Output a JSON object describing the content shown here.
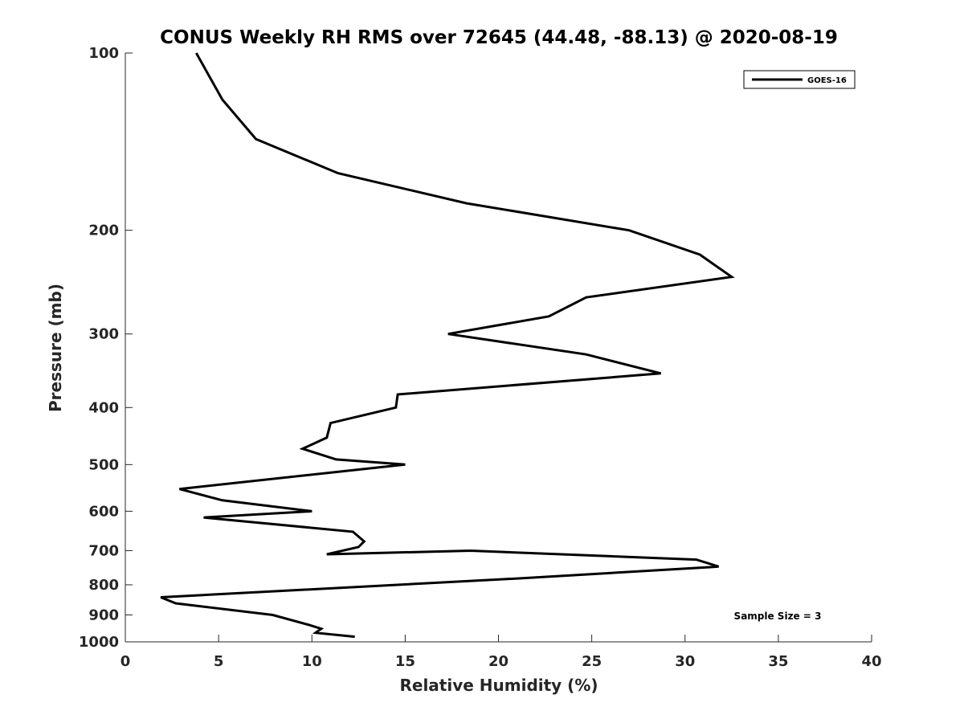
{
  "chart_data": {
    "type": "line",
    "title": "CONUS Weekly RH RMS over 72645 (44.48, -88.13) @ 2020-08-19",
    "xlabel": "Relative Humidity (%)",
    "ylabel": "Pressure (mb)",
    "xlim": [
      0,
      40
    ],
    "ylim": [
      100,
      1000
    ],
    "yscale": "log",
    "yreversed": true,
    "xticks": [
      0,
      5,
      10,
      15,
      20,
      25,
      30,
      35,
      40
    ],
    "yticks": [
      100,
      200,
      300,
      400,
      500,
      600,
      700,
      800,
      900,
      1000
    ],
    "grid": false,
    "legend_position": "top-right",
    "series": [
      {
        "name": "GOES-16",
        "color": "#000000",
        "x": [
          3.8,
          5.2,
          7.0,
          11.4,
          18.3,
          27.0,
          30.8,
          32.5,
          24.7,
          22.7,
          17.3,
          24.7,
          28.7,
          14.6,
          14.5,
          11.0,
          10.8,
          9.5,
          11.3,
          15.0,
          2.9,
          5.2,
          10.0,
          4.2,
          12.2,
          12.8,
          12.5,
          10.8,
          18.5,
          30.6,
          31.8,
          21.2,
          1.9,
          2.7,
          7.9,
          9.8,
          10.5,
          10.2,
          12.3
        ],
        "y": [
          100,
          120,
          140,
          160,
          180,
          200,
          220,
          240,
          260,
          280,
          300,
          325,
          350,
          380,
          400,
          425,
          450,
          470,
          490,
          500,
          550,
          575,
          600,
          615,
          650,
          675,
          690,
          710,
          700,
          725,
          745,
          780,
          840,
          860,
          900,
          935,
          950,
          965,
          980
        ]
      }
    ],
    "annotation": "Sample Size = 3"
  }
}
